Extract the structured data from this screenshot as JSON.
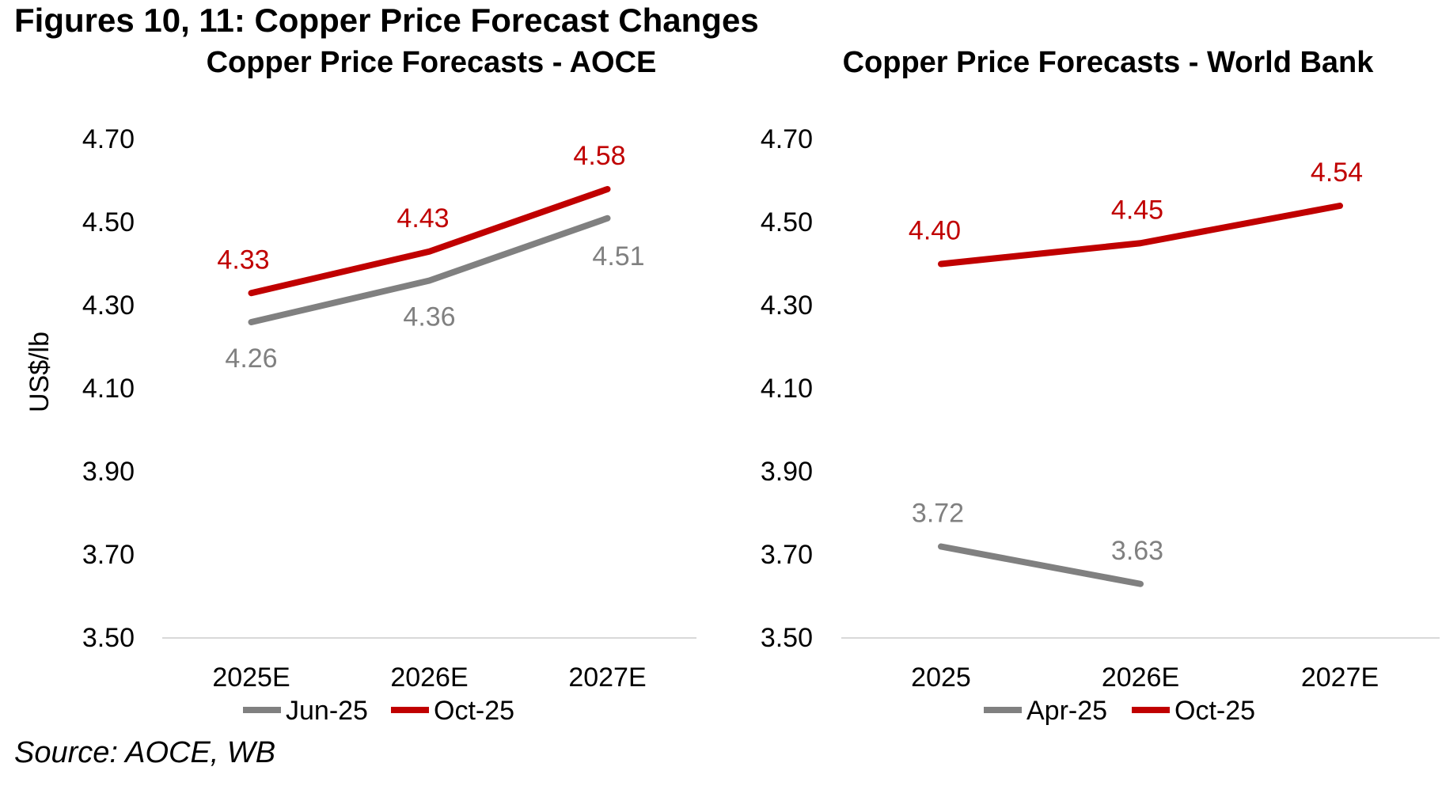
{
  "page": {
    "title": "Figures 10, 11: Copper Price Forecast Changes",
    "source": "Source: AOCE, WB"
  },
  "colors": {
    "red": "#C00000",
    "gray": "#808080",
    "axis_line": "#D9D9D9",
    "text": "#000000"
  },
  "chart_data": [
    {
      "type": "line",
      "title": "Copper Price Forecasts - AOCE",
      "ylabel": "US$/lb",
      "xlabel": "",
      "categories": [
        "2025E",
        "2026E",
        "2027E"
      ],
      "y_ticks": [
        "4.70",
        "4.50",
        "4.30",
        "4.10",
        "3.90",
        "3.70",
        "3.50"
      ],
      "ylim": [
        3.5,
        4.7
      ],
      "grid": false,
      "legend_position": "bottom",
      "series": [
        {
          "name": "Jun-25",
          "color": "gray",
          "values": [
            4.26,
            4.36,
            4.51
          ],
          "labels": [
            "4.26",
            "4.36",
            "4.51"
          ],
          "label_side": "below",
          "label_dx": [
            0,
            0,
            14
          ],
          "label_dy": [
            0,
            0,
            2
          ]
        },
        {
          "name": "Oct-25",
          "color": "red",
          "values": [
            4.33,
            4.43,
            4.58
          ],
          "labels": [
            "4.33",
            "4.43",
            "4.58"
          ],
          "label_side": "above",
          "label_dx": [
            -10,
            -8,
            -10
          ],
          "label_dy": [
            0,
            0,
            0
          ]
        }
      ],
      "legend": [
        "Jun-25",
        "Oct-25"
      ]
    },
    {
      "type": "line",
      "title": "Copper Price Forecasts - World Bank",
      "ylabel": "",
      "xlabel": "",
      "categories": [
        "2025",
        "2026E",
        "2027E"
      ],
      "y_ticks": [
        "4.70",
        "4.50",
        "4.30",
        "4.10",
        "3.90",
        "3.70",
        "3.50"
      ],
      "ylim": [
        3.5,
        4.7
      ],
      "grid": false,
      "legend_position": "bottom",
      "series": [
        {
          "name": "Apr-25",
          "color": "gray",
          "values": [
            3.72,
            3.63
          ],
          "labels": [
            "3.72",
            "3.63"
          ],
          "label_side": "above",
          "label_dx": [
            -4,
            -4
          ],
          "label_dy": [
            0,
            0
          ]
        },
        {
          "name": "Oct-25",
          "color": "red",
          "values": [
            4.4,
            4.45,
            4.54
          ],
          "labels": [
            "4.40",
            "4.45",
            "4.54"
          ],
          "label_side": "above",
          "label_dx": [
            -8,
            -4,
            -4
          ],
          "label_dy": [
            0,
            0,
            0
          ]
        }
      ],
      "legend": [
        "Apr-25",
        "Oct-25"
      ]
    }
  ]
}
